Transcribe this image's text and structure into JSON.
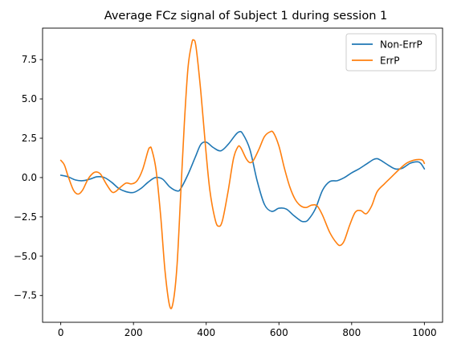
{
  "chart_data": {
    "type": "line",
    "title": "Average FCz signal of Subject 1 during session 1",
    "xlabel": "",
    "ylabel": "",
    "xlim": [
      -50,
      1050
    ],
    "ylim": [
      -9.2,
      9.5
    ],
    "x_ticks": [
      0,
      200,
      400,
      600,
      800,
      1000
    ],
    "x_tick_labels": [
      "0",
      "200",
      "400",
      "600",
      "800",
      "1000"
    ],
    "y_ticks": [
      -7.5,
      -5.0,
      -2.5,
      0.0,
      2.5,
      5.0,
      7.5
    ],
    "y_tick_labels": [
      "−7.5",
      "−5.0",
      "−2.5",
      "0.0",
      "2.5",
      "5.0",
      "7.5"
    ],
    "grid": false,
    "legend_position": "top-right",
    "series": [
      {
        "name": "Non-ErrP",
        "color": "#1f77b4",
        "points": [
          [
            0,
            0.15
          ],
          [
            20,
            0.05
          ],
          [
            40,
            -0.15
          ],
          [
            60,
            -0.2
          ],
          [
            80,
            -0.1
          ],
          [
            100,
            0.05
          ],
          [
            120,
            0.0
          ],
          [
            140,
            -0.3
          ],
          [
            160,
            -0.7
          ],
          [
            180,
            -0.9
          ],
          [
            200,
            -0.95
          ],
          [
            220,
            -0.7
          ],
          [
            240,
            -0.3
          ],
          [
            260,
            0.0
          ],
          [
            280,
            -0.1
          ],
          [
            300,
            -0.6
          ],
          [
            320,
            -0.85
          ],
          [
            330,
            -0.7
          ],
          [
            350,
            0.2
          ],
          [
            370,
            1.3
          ],
          [
            385,
            2.1
          ],
          [
            400,
            2.25
          ],
          [
            420,
            1.9
          ],
          [
            440,
            1.7
          ],
          [
            460,
            2.1
          ],
          [
            480,
            2.7
          ],
          [
            490,
            2.9
          ],
          [
            500,
            2.8
          ],
          [
            520,
            1.8
          ],
          [
            540,
            -0.2
          ],
          [
            560,
            -1.7
          ],
          [
            580,
            -2.15
          ],
          [
            600,
            -1.95
          ],
          [
            620,
            -2.0
          ],
          [
            640,
            -2.4
          ],
          [
            660,
            -2.75
          ],
          [
            670,
            -2.8
          ],
          [
            680,
            -2.7
          ],
          [
            700,
            -2.0
          ],
          [
            720,
            -0.8
          ],
          [
            740,
            -0.25
          ],
          [
            760,
            -0.2
          ],
          [
            780,
            0.0
          ],
          [
            800,
            0.3
          ],
          [
            820,
            0.55
          ],
          [
            840,
            0.85
          ],
          [
            860,
            1.15
          ],
          [
            870,
            1.2
          ],
          [
            880,
            1.1
          ],
          [
            900,
            0.8
          ],
          [
            920,
            0.55
          ],
          [
            940,
            0.6
          ],
          [
            960,
            0.9
          ],
          [
            980,
            1.0
          ],
          [
            990,
            0.9
          ],
          [
            1000,
            0.55
          ]
        ]
      },
      {
        "name": "ErrP",
        "color": "#ff7f0e",
        "points": [
          [
            0,
            1.1
          ],
          [
            10,
            0.8
          ],
          [
            20,
            0.1
          ],
          [
            35,
            -0.8
          ],
          [
            48,
            -1.05
          ],
          [
            60,
            -0.8
          ],
          [
            75,
            -0.1
          ],
          [
            90,
            0.3
          ],
          [
            100,
            0.35
          ],
          [
            110,
            0.2
          ],
          [
            125,
            -0.4
          ],
          [
            140,
            -0.9
          ],
          [
            150,
            -0.9
          ],
          [
            165,
            -0.6
          ],
          [
            180,
            -0.35
          ],
          [
            195,
            -0.4
          ],
          [
            210,
            -0.2
          ],
          [
            225,
            0.5
          ],
          [
            240,
            1.7
          ],
          [
            245,
            1.9
          ],
          [
            250,
            1.8
          ],
          [
            262,
            0.5
          ],
          [
            275,
            -2.5
          ],
          [
            287,
            -6.0
          ],
          [
            300,
            -8.2
          ],
          [
            310,
            -7.8
          ],
          [
            320,
            -5.5
          ],
          [
            330,
            -1.0
          ],
          [
            340,
            3.5
          ],
          [
            350,
            7.0
          ],
          [
            360,
            8.5
          ],
          [
            365,
            8.75
          ],
          [
            372,
            8.3
          ],
          [
            385,
            5.5
          ],
          [
            398,
            2.0
          ],
          [
            410,
            -0.8
          ],
          [
            425,
            -2.7
          ],
          [
            435,
            -3.1
          ],
          [
            445,
            -2.7
          ],
          [
            460,
            -0.9
          ],
          [
            475,
            1.2
          ],
          [
            487,
            1.95
          ],
          [
            495,
            1.9
          ],
          [
            510,
            1.2
          ],
          [
            520,
            0.95
          ],
          [
            530,
            1.1
          ],
          [
            545,
            1.8
          ],
          [
            560,
            2.6
          ],
          [
            575,
            2.9
          ],
          [
            585,
            2.85
          ],
          [
            600,
            2.0
          ],
          [
            615,
            0.6
          ],
          [
            630,
            -0.6
          ],
          [
            645,
            -1.4
          ],
          [
            660,
            -1.8
          ],
          [
            675,
            -1.9
          ],
          [
            690,
            -1.75
          ],
          [
            705,
            -1.8
          ],
          [
            720,
            -2.4
          ],
          [
            740,
            -3.5
          ],
          [
            760,
            -4.2
          ],
          [
            770,
            -4.3
          ],
          [
            780,
            -4.0
          ],
          [
            795,
            -3.0
          ],
          [
            810,
            -2.2
          ],
          [
            825,
            -2.1
          ],
          [
            840,
            -2.3
          ],
          [
            855,
            -1.8
          ],
          [
            870,
            -0.9
          ],
          [
            890,
            -0.4
          ],
          [
            910,
            0.05
          ],
          [
            930,
            0.5
          ],
          [
            950,
            0.9
          ],
          [
            970,
            1.1
          ],
          [
            985,
            1.15
          ],
          [
            995,
            1.1
          ],
          [
            1000,
            0.9
          ]
        ]
      }
    ]
  }
}
